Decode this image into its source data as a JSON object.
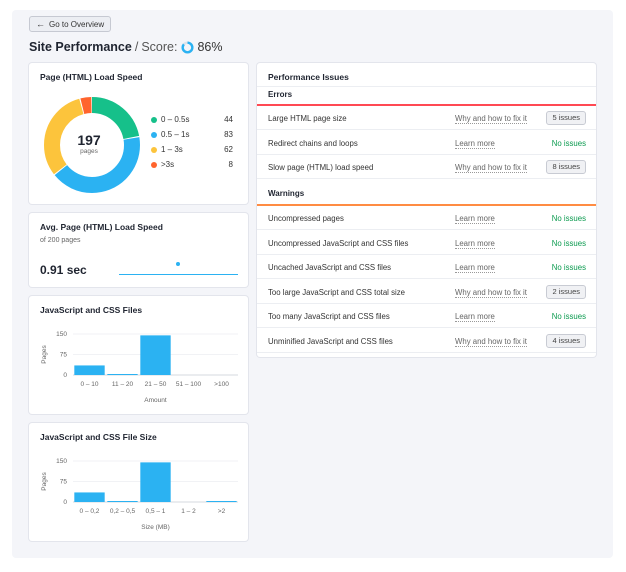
{
  "nav": {
    "back_label": "Go to Overview"
  },
  "header": {
    "title": "Site Performance",
    "score_label": "Score:",
    "score_value": "86%",
    "score_fraction": 0.86
  },
  "load_speed": {
    "title": "Page (HTML) Load Speed",
    "center_value": "197",
    "center_unit": "pages",
    "legend": [
      {
        "label": "0 – 0.5s",
        "value": "44",
        "color": "#16c08a"
      },
      {
        "label": "0.5 – 1s",
        "value": "83",
        "color": "#2bb2f2"
      },
      {
        "label": "1 – 3s",
        "value": "62",
        "color": "#fcc43c"
      },
      {
        "label": ">3s",
        "value": "8",
        "color": "#ff642d"
      }
    ]
  },
  "avg_speed": {
    "title": "Avg. Page (HTML) Load Speed",
    "subtitle": "of 200 pages",
    "value": "0.91 sec"
  },
  "chart_data": [
    {
      "type": "bar",
      "title": "JavaScript and CSS Files",
      "categories": [
        "0 – 10",
        "11 – 20",
        "21 – 50",
        "51 – 100",
        ">100"
      ],
      "values": [
        35,
        2,
        145,
        0,
        0
      ],
      "ylabel": "Pages",
      "xlabel": "Amount",
      "yticks": [
        "150",
        "75",
        "0"
      ],
      "ylim": [
        0,
        150
      ],
      "color": "#2bb2f2"
    },
    {
      "type": "bar",
      "title": "JavaScript and CSS File Size",
      "categories": [
        "0 – 0,2",
        "0,2 – 0,5",
        "0,5 – 1",
        "1 – 2",
        ">2"
      ],
      "values": [
        35,
        2,
        145,
        0,
        2
      ],
      "ylabel": "Pages",
      "xlabel": "Size (MB)",
      "yticks": [
        "150",
        "75",
        "0"
      ],
      "ylim": [
        0,
        150
      ],
      "color": "#2bb2f2"
    }
  ],
  "issues": {
    "title": "Performance Issues",
    "errors_label": "Errors",
    "warnings_label": "Warnings",
    "errors": [
      {
        "name": "Large HTML page size",
        "link": "Why and how to fix it",
        "status": "5 issues",
        "badge": true
      },
      {
        "name": "Redirect chains and loops",
        "link": "Learn more",
        "status": "No issues",
        "badge": false
      },
      {
        "name": "Slow page (HTML) load speed",
        "link": "Why and how to fix it",
        "status": "8 issues",
        "badge": true
      }
    ],
    "warnings": [
      {
        "name": "Uncompressed pages",
        "link": "Learn more",
        "status": "No issues",
        "badge": false
      },
      {
        "name": "Uncompressed JavaScript and CSS files",
        "link": "Learn more",
        "status": "No issues",
        "badge": false
      },
      {
        "name": "Uncached JavaScript and CSS files",
        "link": "Learn more",
        "status": "No issues",
        "badge": false
      },
      {
        "name": "Too large JavaScript and CSS total size",
        "link": "Why and how to fix it",
        "status": "2 issues",
        "badge": true
      },
      {
        "name": "Too many JavaScript and CSS files",
        "link": "Learn more",
        "status": "No issues",
        "badge": false
      },
      {
        "name": "Unminified JavaScript and CSS files",
        "link": "Why and how to fix it",
        "status": "4 issues",
        "badge": true
      }
    ]
  }
}
